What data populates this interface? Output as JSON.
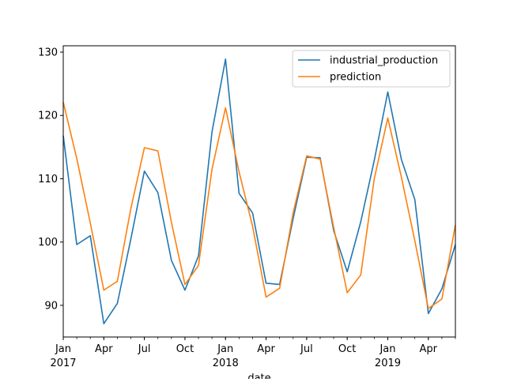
{
  "chart_data": {
    "type": "line",
    "title": "",
    "xlabel": "date",
    "ylabel": "",
    "ylim": [
      85,
      131
    ],
    "xlim": [
      "2017-01",
      "2019-06"
    ],
    "yticks": [
      90,
      100,
      110,
      120,
      130
    ],
    "xticks": [
      {
        "date": "2017-01",
        "label": "Jan",
        "sublabel": "2017"
      },
      {
        "date": "2017-04",
        "label": "Apr",
        "sublabel": ""
      },
      {
        "date": "2017-07",
        "label": "Jul",
        "sublabel": ""
      },
      {
        "date": "2017-10",
        "label": "Oct",
        "sublabel": ""
      },
      {
        "date": "2018-01",
        "label": "Jan",
        "sublabel": "2018"
      },
      {
        "date": "2018-04",
        "label": "Apr",
        "sublabel": ""
      },
      {
        "date": "2018-07",
        "label": "Jul",
        "sublabel": ""
      },
      {
        "date": "2018-10",
        "label": "Oct",
        "sublabel": ""
      },
      {
        "date": "2019-01",
        "label": "Jan",
        "sublabel": "2019"
      },
      {
        "date": "2019-04",
        "label": "Apr",
        "sublabel": ""
      }
    ],
    "legend_position": "top-right",
    "grid": false,
    "x": [
      "2017-01",
      "2017-02",
      "2017-03",
      "2017-04",
      "2017-05",
      "2017-06",
      "2017-07",
      "2017-08",
      "2017-09",
      "2017-10",
      "2017-11",
      "2017-12",
      "2018-01",
      "2018-02",
      "2018-03",
      "2018-04",
      "2018-05",
      "2018-06",
      "2018-07",
      "2018-08",
      "2018-09",
      "2018-10",
      "2018-11",
      "2018-12",
      "2019-01",
      "2019-02",
      "2019-03",
      "2019-04",
      "2019-05",
      "2019-06"
    ],
    "series": [
      {
        "name": "industrial_production",
        "color": "#1f77b4",
        "values": [
          116.8,
          99.6,
          101.0,
          87.1,
          90.3,
          100.5,
          111.2,
          107.8,
          97.1,
          92.4,
          97.8,
          117.4,
          128.9,
          107.7,
          104.6,
          93.5,
          93.3,
          103.7,
          113.4,
          113.3,
          101.8,
          95.3,
          103.2,
          112.9,
          123.7,
          113.1,
          106.7,
          88.7,
          92.6,
          99.6
        ]
      },
      {
        "name": "prediction",
        "color": "#ff7f0e",
        "values": [
          122.1,
          113.2,
          103.0,
          92.4,
          93.8,
          105.3,
          114.9,
          114.4,
          103.1,
          93.3,
          96.3,
          111.5,
          121.2,
          111.1,
          102.5,
          91.3,
          92.7,
          104.6,
          113.6,
          113.1,
          102.3,
          92.0,
          94.8,
          110.0,
          119.6,
          110.3,
          100.2,
          89.5,
          91.0,
          102.7
        ]
      }
    ]
  }
}
